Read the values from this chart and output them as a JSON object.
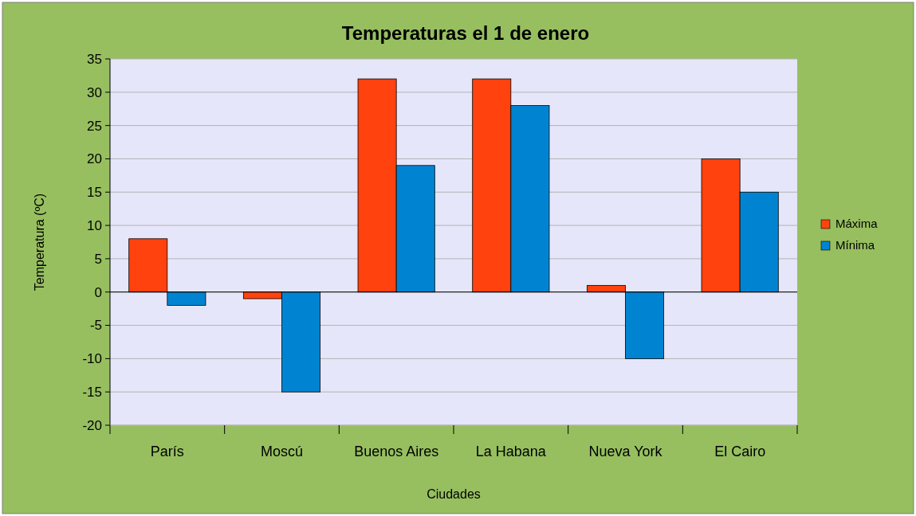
{
  "chart_data": {
    "type": "bar",
    "title": "Temperaturas el 1 de enero",
    "xlabel": "Ciudades",
    "ylabel": "Temperatura (ºC)",
    "categories": [
      "París",
      "Moscú",
      "Buenos Aires",
      "La Habana",
      "Nueva York",
      "El Cairo"
    ],
    "series": [
      {
        "name": "Máxima",
        "color": "#ff420e",
        "values": [
          8,
          -1,
          32,
          32,
          1,
          20
        ]
      },
      {
        "name": "Mínima",
        "color": "#0084d1",
        "values": [
          -2,
          -15,
          19,
          28,
          -10,
          15
        ]
      }
    ],
    "ylim": [
      -20,
      35
    ],
    "yticks": [
      -20,
      -15,
      -10,
      -5,
      0,
      5,
      10,
      15,
      20,
      25,
      30,
      35
    ],
    "grid": "y",
    "legend": "right"
  }
}
